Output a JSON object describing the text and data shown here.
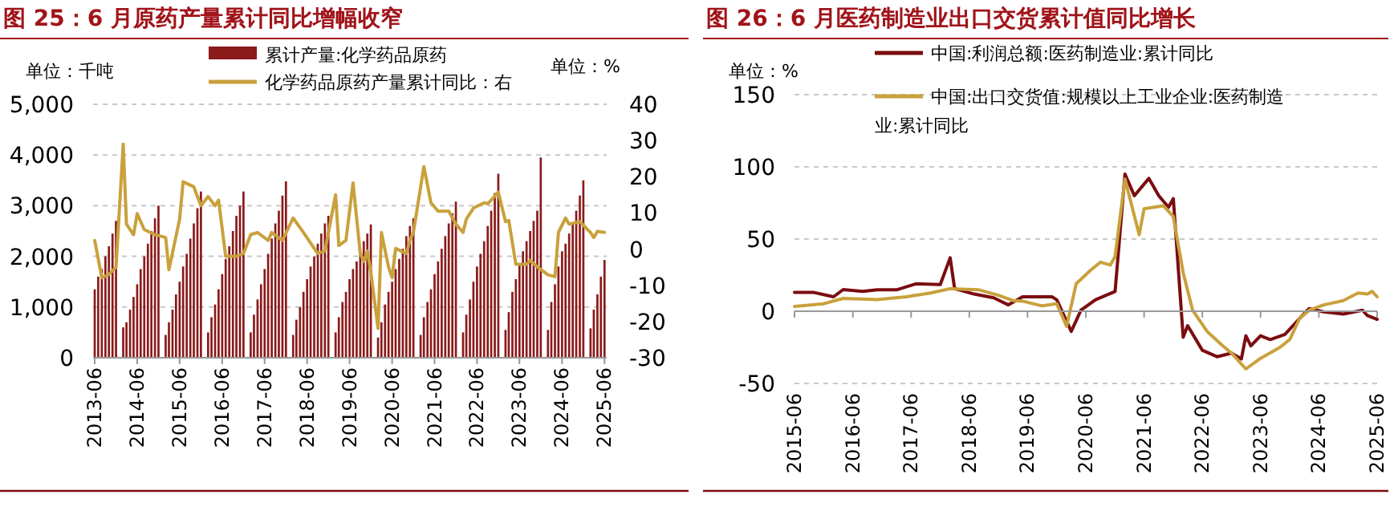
{
  "chart_data": [
    {
      "type": "bar",
      "title": "图 25：6 月原药产量累计同比增幅收窄",
      "ylabel": "单位：千吨",
      "y2label": "单位：%",
      "legend": "top",
      "grid": "y",
      "xlim": [
        "2013-05-18",
        "2025-06-20"
      ],
      "xticks": [
        {
          "value": "2013-06",
          "label": "2013-06"
        },
        {
          "value": "2014-06",
          "label": "2014-06"
        },
        {
          "value": "2015-06",
          "label": "2015-06"
        },
        {
          "value": "2016-06",
          "label": "2016-06"
        },
        {
          "value": "2017-06",
          "label": "2017-06"
        },
        {
          "value": "2018-06",
          "label": "2018-06"
        },
        {
          "value": "2019-06",
          "label": "2019-06"
        },
        {
          "value": "2020-06",
          "label": "2020-06"
        },
        {
          "value": "2021-06",
          "label": "2021-06"
        },
        {
          "value": "2022-06",
          "label": "2022-06"
        },
        {
          "value": "2023-06",
          "label": "2023-06"
        },
        {
          "value": "2024-06",
          "label": "2024-06"
        },
        {
          "value": "2025-06",
          "label": "2025-06"
        }
      ],
      "ylim": [
        0,
        5000
      ],
      "yticks": [
        0,
        {
          "value": 1000,
          "label": "1,000"
        },
        {
          "value": 2000,
          "label": "2,000"
        },
        {
          "value": 3000,
          "label": "3,000"
        },
        {
          "value": 4000,
          "label": "4,000"
        },
        {
          "value": 5000,
          "label": "5,000"
        }
      ],
      "y2lim": [
        -30,
        40
      ],
      "y2ticks": [
        -30,
        -20,
        -10,
        0,
        10,
        20,
        30,
        40
      ],
      "series": [
        {
          "name": "累计产量:化学药品原药",
          "color": "#8b1a1a",
          "x": [
            "2013-06",
            "2013-07",
            "2013-08",
            "2013-09",
            "2013-10",
            "2013-11",
            "2013-12",
            "2014-02",
            "2014-03",
            "2014-04",
            "2014-05",
            "2014-06",
            "2014-07",
            "2014-08",
            "2014-09",
            "2014-10",
            "2014-11",
            "2014-12",
            "2015-02",
            "2015-03",
            "2015-04",
            "2015-05",
            "2015-06",
            "2015-07",
            "2015-08",
            "2015-09",
            "2015-10",
            "2015-11",
            "2015-12",
            "2016-02",
            "2016-03",
            "2016-04",
            "2016-05",
            "2016-06",
            "2016-07",
            "2016-08",
            "2016-09",
            "2016-10",
            "2016-11",
            "2016-12",
            "2017-02",
            "2017-03",
            "2017-04",
            "2017-05",
            "2017-06",
            "2017-07",
            "2017-08",
            "2017-09",
            "2017-10",
            "2017-11",
            "2017-12",
            "2018-02",
            "2018-03",
            "2018-04",
            "2018-05",
            "2018-06",
            "2018-07",
            "2018-08",
            "2018-09",
            "2018-10",
            "2018-11",
            "2018-12",
            "2019-02",
            "2019-03",
            "2019-04",
            "2019-05",
            "2019-06",
            "2019-07",
            "2019-08",
            "2019-09",
            "2019-10",
            "2019-11",
            "2019-12",
            "2020-02",
            "2020-03",
            "2020-04",
            "2020-05",
            "2020-06",
            "2020-07",
            "2020-08",
            "2020-09",
            "2020-10",
            "2020-11",
            "2020-12",
            "2021-02",
            "2021-03",
            "2021-04",
            "2021-05",
            "2021-06",
            "2021-07",
            "2021-08",
            "2021-09",
            "2021-10",
            "2021-11",
            "2021-12",
            "2022-02",
            "2022-03",
            "2022-04",
            "2022-05",
            "2022-06",
            "2022-07",
            "2022-08",
            "2022-09",
            "2022-10",
            "2022-11",
            "2022-12",
            "2023-02",
            "2023-03",
            "2023-04",
            "2023-05",
            "2023-06",
            "2023-07",
            "2023-08",
            "2023-09",
            "2023-10",
            "2023-11",
            "2023-12",
            "2024-02",
            "2024-03",
            "2024-04",
            "2024-05",
            "2024-06",
            "2024-07",
            "2024-08",
            "2024-09",
            "2024-10",
            "2024-11",
            "2024-12",
            "2025-02",
            "2025-03",
            "2025-04",
            "2025-05",
            "2025-06"
          ],
          "values": [
            1350,
            1600,
            1750,
            2000,
            2200,
            2450,
            2700,
            600,
            700,
            950,
            1200,
            1450,
            1750,
            2000,
            2250,
            2500,
            2750,
            3000,
            450,
            700,
            950,
            1250,
            1500,
            1800,
            2050,
            2350,
            2650,
            2950,
            3280,
            500,
            800,
            1050,
            1350,
            1650,
            1950,
            2200,
            2500,
            2800,
            3000,
            3280,
            500,
            850,
            1150,
            1450,
            1750,
            2050,
            2350,
            2650,
            2900,
            3200,
            3480,
            450,
            750,
            1000,
            1300,
            1550,
            1800,
            2000,
            2250,
            2450,
            2650,
            2800,
            500,
            800,
            1100,
            1300,
            1550,
            1750,
            1900,
            2100,
            2300,
            2450,
            2630,
            400,
            700,
            1050,
            1300,
            1500,
            1750,
            1950,
            2150,
            2400,
            2600,
            2750,
            450,
            800,
            1100,
            1350,
            1650,
            1900,
            2150,
            2400,
            2650,
            2850,
            3080,
            500,
            850,
            1150,
            1500,
            1800,
            2050,
            2300,
            2600,
            2900,
            3250,
            3630,
            550,
            900,
            1300,
            1550,
            1850,
            2100,
            2300,
            2500,
            2700,
            2900,
            3950,
            550,
            1100,
            1450,
            1800,
            2100,
            2250,
            2450,
            2650,
            2900,
            3200,
            3500,
            580,
            950,
            1250,
            1600,
            1930
          ]
        },
        {
          "name": "化学药品原药产量累计同比：右",
          "type": "line",
          "axis": "y2",
          "color": "#c9a13c",
          "x": [
            "2013-06",
            "2013-08",
            "2013-10",
            "2013-12",
            "2014-02",
            "2014-03",
            "2014-05",
            "2014-06",
            "2014-08",
            "2014-11",
            "2015-02",
            "2015-03",
            "2015-06",
            "2015-07",
            "2015-10",
            "2015-12",
            "2016-02",
            "2016-04",
            "2016-05",
            "2016-07",
            "2016-10",
            "2016-12",
            "2017-02",
            "2017-04",
            "2017-07",
            "2017-08",
            "2017-11",
            "2018-02",
            "2018-05",
            "2018-08",
            "2018-09",
            "2018-11",
            "2019-02",
            "2019-03",
            "2019-05",
            "2019-07",
            "2019-09",
            "2019-10",
            "2019-11",
            "2019-12",
            "2020-02",
            "2020-03",
            "2020-05",
            "2020-06",
            "2020-07",
            "2020-10",
            "2020-11",
            "2020-12",
            "2021-03",
            "2021-05",
            "2021-07",
            "2021-10",
            "2021-12",
            "2022-02",
            "2022-03",
            "2022-05",
            "2022-08",
            "2022-09",
            "2022-12",
            "2023-02",
            "2023-03",
            "2023-05",
            "2023-08",
            "2023-09",
            "2023-11",
            "2024-02",
            "2024-04",
            "2024-05",
            "2024-07",
            "2024-08",
            "2024-11",
            "2025-02",
            "2025-03",
            "2025-04",
            "2025-06"
          ],
          "values": [
            2.4,
            -7.9,
            -7,
            -5,
            29,
            6.9,
            4,
            9.8,
            5.4,
            4,
            3.2,
            -5.7,
            8.3,
            18.6,
            17.2,
            12,
            14.5,
            12,
            13.5,
            -2,
            -2,
            -1.2,
            4,
            4.6,
            2.4,
            4.6,
            2.4,
            8.6,
            4.6,
            0.2,
            -1.2,
            -0.5,
            15,
            1,
            2.4,
            18.3,
            -1.2,
            -3.4,
            -0.5,
            -6.4,
            -21.9,
            4.6,
            -4.9,
            -7.9,
            0.2,
            -1.2,
            2.4,
            4.6,
            22.8,
            12.8,
            10.5,
            10.5,
            6.9,
            4.6,
            8.3,
            11.3,
            12.8,
            12.5,
            15.7,
            7.6,
            7.9,
            -4.2,
            -4.2,
            -3.1,
            -4.9,
            -7.1,
            -7.6,
            4.6,
            8.6,
            6.9,
            7.6,
            4.6,
            3.2,
            4.9,
            4.6
          ]
        }
      ]
    },
    {
      "type": "line",
      "title": "图 26：6 月医药制造业出口交货累计值同比增长",
      "ylabel": "单位：%",
      "legend": "top",
      "grid": "y",
      "xlim": [
        "2015-06",
        "2025-06"
      ],
      "xticks": [
        {
          "value": "2015-06",
          "label": "2015-06"
        },
        {
          "value": "2016-06",
          "label": "2016-06"
        },
        {
          "value": "2017-06",
          "label": "2017-06"
        },
        {
          "value": "2018-06",
          "label": "2018-06"
        },
        {
          "value": "2019-06",
          "label": "2019-06"
        },
        {
          "value": "2020-06",
          "label": "2020-06"
        },
        {
          "value": "2021-06",
          "label": "2021-06"
        },
        {
          "value": "2022-06",
          "label": "2022-06"
        },
        {
          "value": "2023-06",
          "label": "2023-06"
        },
        {
          "value": "2024-06",
          "label": "2024-06"
        },
        {
          "value": "2025-06",
          "label": "2025-06"
        }
      ],
      "ylim": [
        -50,
        150
      ],
      "yticks": [
        -50,
        0,
        50,
        100,
        150
      ],
      "series": [
        {
          "name": "中国:利润总额:医药制造业:累计同比",
          "color": "#7b0c10",
          "x": [
            "2015-06",
            "2015-10",
            "2016-02",
            "2016-04",
            "2016-08",
            "2016-11",
            "2017-03",
            "2017-07",
            "2017-12",
            "2018-02",
            "2018-03",
            "2018-07",
            "2018-11",
            "2019-02",
            "2019-05",
            "2019-11",
            "2019-12",
            "2020-03",
            "2020-05",
            "2020-08",
            "2020-12",
            "2021-02",
            "2021-04",
            "2021-07",
            "2021-09",
            "2021-11",
            "2021-12",
            "2022-02",
            "2022-03",
            "2022-06",
            "2022-09",
            "2022-12",
            "2023-02",
            "2023-03",
            "2023-04",
            "2023-06",
            "2023-08",
            "2023-11",
            "2024-02",
            "2024-04",
            "2024-07",
            "2024-11",
            "2025-03",
            "2025-04",
            "2025-06"
          ],
          "values": [
            13,
            13,
            10,
            15,
            13.7,
            14.8,
            14.8,
            19,
            18.5,
            37,
            15.6,
            11.9,
            9.3,
            4.4,
            10,
            10,
            8,
            -14,
            0.7,
            8,
            13.7,
            95,
            80,
            92,
            80,
            72,
            78,
            -18,
            -10,
            -27,
            -31.5,
            -29,
            -33,
            -17,
            -24,
            -17,
            -19.6,
            -16,
            -5,
            1.8,
            -0.4,
            -1.9,
            0.7,
            -3,
            -5.6
          ]
        },
        {
          "name": "中国:出口交货值:规模以上工业企业:医药制造业:累计同比",
          "color": "#c9a13c",
          "x": [
            "2015-06",
            "2015-12",
            "2016-04",
            "2016-11",
            "2017-05",
            "2017-10",
            "2018-02",
            "2018-08",
            "2018-12",
            "2019-03",
            "2019-05",
            "2019-09",
            "2019-12",
            "2020-02",
            "2020-04",
            "2020-07",
            "2020-09",
            "2020-11",
            "2020-12",
            "2021-02",
            "2021-05",
            "2021-06",
            "2021-10",
            "2021-12",
            "2022-02",
            "2022-04",
            "2022-07",
            "2022-10",
            "2022-12",
            "2023-03",
            "2023-06",
            "2023-10",
            "2023-12",
            "2024-02",
            "2024-04",
            "2024-07",
            "2024-11",
            "2025-02",
            "2025-04",
            "2025-05",
            "2025-06"
          ],
          "values": [
            3.3,
            5.2,
            8.9,
            8,
            10,
            12.6,
            15.6,
            14.8,
            11,
            7.4,
            7,
            3.7,
            5.2,
            -10.4,
            19,
            28.5,
            34,
            32,
            37.8,
            91.5,
            53,
            71,
            73,
            65.6,
            26.7,
            0.7,
            -14,
            -23.3,
            -29,
            -40,
            -32.6,
            -25,
            -19.6,
            -5,
            0.7,
            4.4,
            7.4,
            12.6,
            11.9,
            13.7,
            10
          ]
        }
      ]
    }
  ]
}
